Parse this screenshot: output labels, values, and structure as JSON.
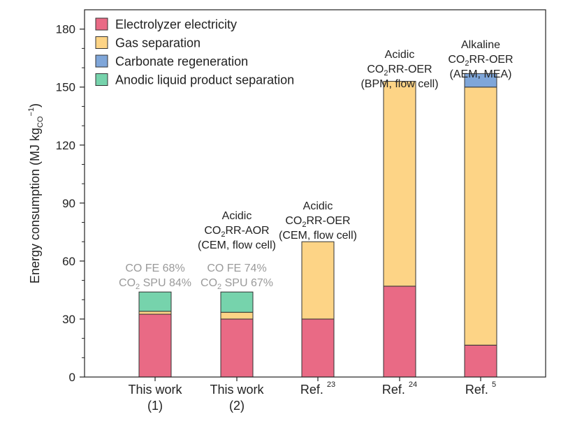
{
  "chart_data": {
    "type": "bar",
    "stacked": true,
    "title": "",
    "xlabel": "",
    "ylabel": {
      "text": "Energy consumption (MJ kg",
      "sub": "CO",
      "sup": "−1",
      "close": ")"
    },
    "ylim": [
      0,
      190
    ],
    "yticks": [
      0,
      30,
      60,
      90,
      120,
      150,
      180
    ],
    "grid": false,
    "legend_position": "top-left",
    "categories": [
      {
        "line1": "This work",
        "line2": "(1)",
        "sup": ""
      },
      {
        "line1": "This work",
        "line2": "(2)",
        "sup": ""
      },
      {
        "line1": "Ref.",
        "line2": "",
        "sup": "23"
      },
      {
        "line1": "Ref.",
        "line2": "",
        "sup": "24"
      },
      {
        "line1": "Ref.",
        "line2": "",
        "sup": "5"
      }
    ],
    "series": [
      {
        "name": "Electrolyzer electricity",
        "color": "#e96a85",
        "values": [
          32.5,
          30,
          30,
          47,
          16.5
        ]
      },
      {
        "name": "Gas separation",
        "color": "#fdd486",
        "values": [
          1.5,
          3.5,
          40,
          106,
          133.5
        ]
      },
      {
        "name": "Carbonate regeneration",
        "color": "#7fa6d9",
        "values": [
          0,
          0,
          0,
          0,
          7
        ]
      },
      {
        "name": "Anodic liquid product separation",
        "color": "#76d3ac",
        "values": [
          10,
          10.5,
          0,
          0,
          0
        ]
      }
    ],
    "annotations": [
      {
        "bar": 0,
        "style": "grey",
        "lines": [
          [
            {
              "t": "CO FE 68%"
            }
          ],
          [
            {
              "t": "CO"
            },
            {
              "t": "2",
              "sub": true
            },
            {
              "t": " SPU 84%"
            }
          ]
        ]
      },
      {
        "bar": 1,
        "style": "grey",
        "lines": [
          [
            {
              "t": "CO FE 74%"
            }
          ],
          [
            {
              "t": "CO"
            },
            {
              "t": "2",
              "sub": true
            },
            {
              "t": " SPU 67%"
            }
          ]
        ]
      },
      {
        "bar": 1,
        "style": "dark",
        "lines": [
          [
            {
              "t": "Acidic"
            }
          ],
          [
            {
              "t": "CO"
            },
            {
              "t": "2",
              "sub": true
            },
            {
              "t": "RR-AOR"
            }
          ],
          [
            {
              "t": "(CEM, flow cell)"
            }
          ]
        ]
      },
      {
        "bar": 2,
        "style": "dark",
        "lines": [
          [
            {
              "t": "Acidic"
            }
          ],
          [
            {
              "t": "CO"
            },
            {
              "t": "2",
              "sub": true
            },
            {
              "t": "RR-OER"
            }
          ],
          [
            {
              "t": "(CEM, flow cell)"
            }
          ]
        ]
      },
      {
        "bar": 3,
        "style": "dark",
        "lines": [
          [
            {
              "t": "Acidic"
            }
          ],
          [
            {
              "t": "CO"
            },
            {
              "t": "2",
              "sub": true
            },
            {
              "t": "RR-OER"
            }
          ],
          [
            {
              "t": "(BPM, flow cell)"
            }
          ]
        ]
      },
      {
        "bar": 4,
        "style": "dark",
        "lines": [
          [
            {
              "t": "Alkaline"
            }
          ],
          [
            {
              "t": "CO"
            },
            {
              "t": "2",
              "sub": true
            },
            {
              "t": "RR-OER"
            }
          ],
          [
            {
              "t": "(AEM, MEA)"
            }
          ]
        ]
      }
    ]
  }
}
